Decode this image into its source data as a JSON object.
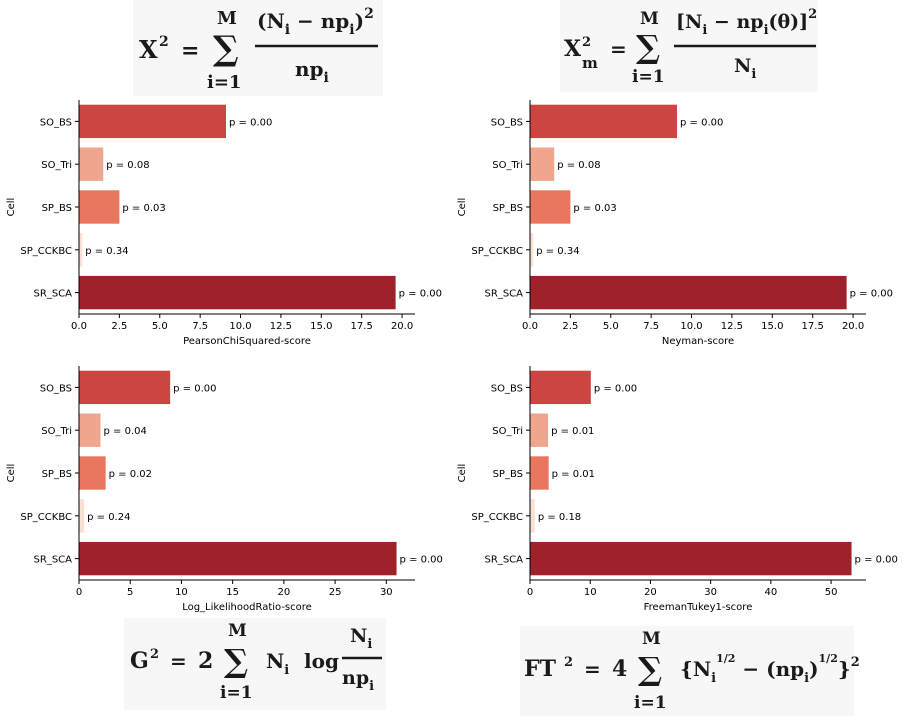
{
  "formulas": {
    "pearson": {
      "lhs": "X",
      "lhs_sup": "2",
      "eq": "=",
      "sum_top": "M",
      "sum_bottom": "i=1",
      "num": "(N",
      "num_sub": "i",
      "num_mid": " − np",
      "num_sub2": "i",
      "num_end": ")",
      "num_sup": "2",
      "den": "np",
      "den_sub": "i"
    },
    "neyman": {
      "lhs": "X",
      "lhs_sup": "2",
      "lhs_sub": "m",
      "eq": "=",
      "sum_top": "M",
      "sum_bottom": "i=1",
      "num": "[N",
      "num_sub": "i",
      "num_mid": " − np",
      "num_sub2": "i",
      "num_theta": "(θ)]",
      "num_sup": "2",
      "den": "N",
      "den_sub": "i"
    },
    "loglik": {
      "lhs": "G",
      "lhs_sup": "2",
      "eq": "=",
      "coef": "2",
      "sum_top": "M",
      "sum_bottom": "i=1",
      "term": "N",
      "term_sub": "i",
      "log": "log",
      "num": "N",
      "num_sub": "i",
      "den": "np",
      "den_sub": "i"
    },
    "freeman": {
      "lhs": "FT",
      "lhs_sup": "2",
      "eq": "=",
      "coef": "4",
      "sum_top": "M",
      "sum_bottom": "i=1",
      "open": "{N",
      "sub1": "i",
      "half1": "1/2",
      "mid": " − (np",
      "sub2": "i",
      "close_paren": ")",
      "half2": "1/2",
      "close": "}",
      "sup": "2"
    }
  },
  "colors": {
    "SO_BS": "#cb4542",
    "SO_Tri": "#f0a68e",
    "SP_BS": "#e8775e",
    "SP_CCKBC": "#fbe0d4",
    "SR_SCA": "#9d222b"
  },
  "chart_data": [
    {
      "type": "bar",
      "orientation": "horizontal",
      "categories": [
        "SO_BS",
        "SO_Tri",
        "SP_BS",
        "SP_CCKBC",
        "SR_SCA"
      ],
      "values": [
        9.1,
        1.5,
        2.5,
        0.2,
        19.6
      ],
      "bar_labels": [
        "p = 0.00",
        "p = 0.08",
        "p = 0.03",
        "p = 0.34",
        "p = 0.00"
      ],
      "xlabel": "PearsonChiSquared-score",
      "ylabel": "Cell",
      "xlim": [
        0,
        20.8
      ],
      "xticks": [
        0.0,
        2.5,
        5.0,
        7.5,
        10.0,
        12.5,
        15.0,
        17.5,
        20.0
      ],
      "xtick_labels": [
        "0.0",
        "2.5",
        "5.0",
        "7.5",
        "10.0",
        "12.5",
        "15.0",
        "17.5",
        "20.0"
      ],
      "grid": false
    },
    {
      "type": "bar",
      "orientation": "horizontal",
      "categories": [
        "SO_BS",
        "SO_Tri",
        "SP_BS",
        "SP_CCKBC",
        "SR_SCA"
      ],
      "values": [
        9.1,
        1.5,
        2.5,
        0.2,
        19.6
      ],
      "bar_labels": [
        "p = 0.00",
        "p = 0.08",
        "p = 0.03",
        "p = 0.34",
        "p = 0.00"
      ],
      "xlabel": "Neyman-score",
      "ylabel": "Cell",
      "xlim": [
        0,
        20.8
      ],
      "xticks": [
        0.0,
        2.5,
        5.0,
        7.5,
        10.0,
        12.5,
        15.0,
        17.5,
        20.0
      ],
      "xtick_labels": [
        "0.0",
        "2.5",
        "5.0",
        "7.5",
        "10.0",
        "12.5",
        "15.0",
        "17.5",
        "20.0"
      ],
      "grid": false
    },
    {
      "type": "bar",
      "orientation": "horizontal",
      "categories": [
        "SO_BS",
        "SO_Tri",
        "SP_BS",
        "SP_CCKBC",
        "SR_SCA"
      ],
      "values": [
        8.9,
        2.1,
        2.6,
        0.5,
        31.0
      ],
      "bar_labels": [
        "p = 0.00",
        "p = 0.04",
        "p = 0.02",
        "p = 0.24",
        "p = 0.00"
      ],
      "xlabel": "Log_LikelihoodRatio-score",
      "ylabel": "Cell",
      "xlim": [
        0,
        32.8
      ],
      "xticks": [
        0,
        5,
        10,
        15,
        20,
        25,
        30
      ],
      "xtick_labels": [
        "0",
        "5",
        "10",
        "15",
        "20",
        "25",
        "30"
      ],
      "grid": false
    },
    {
      "type": "bar",
      "orientation": "horizontal",
      "categories": [
        "SO_BS",
        "SO_Tri",
        "SP_BS",
        "SP_CCKBC",
        "SR_SCA"
      ],
      "values": [
        10.1,
        3.0,
        3.1,
        0.8,
        53.4
      ],
      "bar_labels": [
        "p = 0.00",
        "p = 0.01",
        "p = 0.01",
        "p = 0.18",
        "p = 0.00"
      ],
      "xlabel": "FreemanTukey1-score",
      "ylabel": "Cell",
      "xlim": [
        0,
        55.8
      ],
      "xticks": [
        0,
        10,
        20,
        30,
        40,
        50
      ],
      "xtick_labels": [
        "0",
        "10",
        "20",
        "30",
        "40",
        "50"
      ],
      "grid": false
    }
  ]
}
